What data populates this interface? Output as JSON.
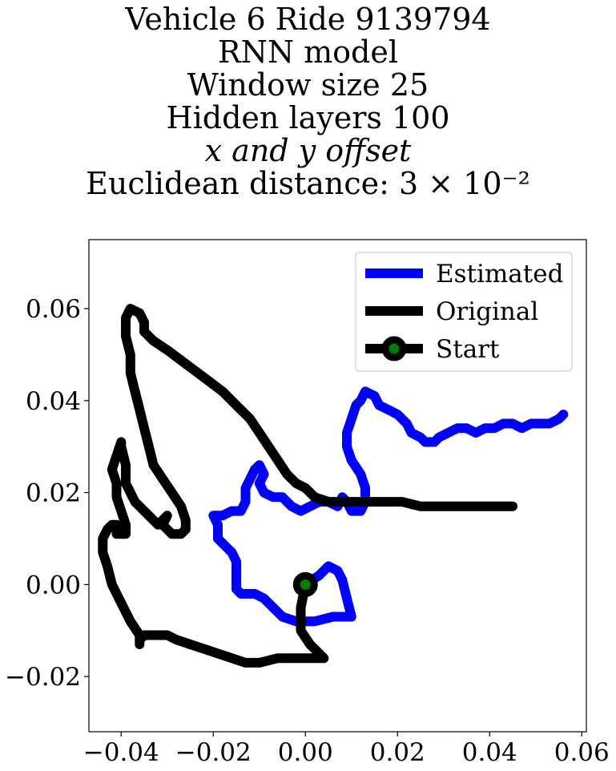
{
  "chart_data": {
    "type": "line",
    "title_lines": [
      "Vehicle 6 Ride 9139794",
      "RNN model",
      "Window size 25",
      "Hidden layers 100",
      "x and y offset",
      "Euclidean distance: 3 × 10⁻²"
    ],
    "xlabel": "",
    "ylabel": "",
    "xlim": [
      -0.047,
      0.061
    ],
    "ylim": [
      -0.032,
      0.075
    ],
    "xticks": [
      -0.04,
      -0.02,
      0.0,
      0.02,
      0.04,
      0.06
    ],
    "xtick_labels": [
      "−0.04",
      "−0.02",
      "0.00",
      "0.02",
      "0.04",
      "0.06"
    ],
    "yticks": [
      -0.02,
      0.0,
      0.02,
      0.04,
      0.06
    ],
    "ytick_labels": [
      "−0.02",
      "0.00",
      "0.02",
      "0.04",
      "0.06"
    ],
    "grid": false,
    "legend_position": "top-right",
    "series": [
      {
        "name": "Estimated",
        "color": "#0000ff",
        "points": [
          [
            0.0,
            0.0
          ],
          [
            0.003,
            0.002
          ],
          [
            0.005,
            0.004
          ],
          [
            0.007,
            0.003
          ],
          [
            0.008,
            0.001
          ],
          [
            0.009,
            -0.003
          ],
          [
            0.01,
            -0.007
          ],
          [
            0.009,
            -0.007
          ],
          [
            0.006,
            -0.007
          ],
          [
            0.002,
            -0.008
          ],
          [
            -0.002,
            -0.008
          ],
          [
            -0.005,
            -0.007
          ],
          [
            -0.009,
            -0.003
          ],
          [
            -0.011,
            -0.002
          ],
          [
            -0.014,
            -0.002
          ],
          [
            -0.015,
            -0.001
          ],
          [
            -0.015,
            0.002
          ],
          [
            -0.015,
            0.005
          ],
          [
            -0.016,
            0.007
          ],
          [
            -0.017,
            0.008
          ],
          [
            -0.019,
            0.01
          ],
          [
            -0.019,
            0.013
          ],
          [
            -0.02,
            0.015
          ],
          [
            -0.018,
            0.015
          ],
          [
            -0.016,
            0.016
          ],
          [
            -0.014,
            0.016
          ],
          [
            -0.013,
            0.018
          ],
          [
            -0.013,
            0.021
          ],
          [
            -0.012,
            0.023
          ],
          [
            -0.011,
            0.025
          ],
          [
            -0.01,
            0.026
          ],
          [
            -0.009,
            0.024
          ],
          [
            -0.01,
            0.022
          ],
          [
            -0.009,
            0.02
          ],
          [
            -0.007,
            0.019
          ],
          [
            -0.005,
            0.019
          ],
          [
            -0.003,
            0.017
          ],
          [
            -0.001,
            0.016
          ],
          [
            0.001,
            0.017
          ],
          [
            0.003,
            0.018
          ],
          [
            0.005,
            0.018
          ],
          [
            0.007,
            0.017
          ],
          [
            0.008,
            0.019
          ],
          [
            0.009,
            0.018
          ],
          [
            0.01,
            0.016
          ],
          [
            0.012,
            0.016
          ],
          [
            0.013,
            0.018
          ],
          [
            0.013,
            0.021
          ],
          [
            0.012,
            0.024
          ],
          [
            0.01,
            0.027
          ],
          [
            0.009,
            0.03
          ],
          [
            0.009,
            0.033
          ],
          [
            0.01,
            0.036
          ],
          [
            0.011,
            0.039
          ],
          [
            0.012,
            0.04
          ],
          [
            0.013,
            0.042
          ],
          [
            0.015,
            0.041
          ],
          [
            0.016,
            0.039
          ],
          [
            0.018,
            0.038
          ],
          [
            0.02,
            0.037
          ],
          [
            0.022,
            0.035
          ],
          [
            0.023,
            0.033
          ],
          [
            0.025,
            0.032
          ],
          [
            0.026,
            0.031
          ],
          [
            0.028,
            0.031
          ],
          [
            0.029,
            0.032
          ],
          [
            0.031,
            0.033
          ],
          [
            0.033,
            0.034
          ],
          [
            0.035,
            0.034
          ],
          [
            0.037,
            0.033
          ],
          [
            0.039,
            0.034
          ],
          [
            0.041,
            0.034
          ],
          [
            0.043,
            0.035
          ],
          [
            0.045,
            0.035
          ],
          [
            0.047,
            0.034
          ],
          [
            0.049,
            0.035
          ],
          [
            0.051,
            0.035
          ],
          [
            0.053,
            0.035
          ],
          [
            0.055,
            0.036
          ],
          [
            0.056,
            0.037
          ]
        ]
      },
      {
        "name": "Original",
        "color": "#000000",
        "points": [
          [
            0.0,
            0.0
          ],
          [
            -0.001,
            -0.005
          ],
          [
            -0.001,
            -0.01
          ],
          [
            0.001,
            -0.013
          ],
          [
            0.003,
            -0.015
          ],
          [
            0.004,
            -0.016
          ],
          [
            0.001,
            -0.016
          ],
          [
            -0.002,
            -0.016
          ],
          [
            -0.006,
            -0.016
          ],
          [
            -0.01,
            -0.017
          ],
          [
            -0.013,
            -0.017
          ],
          [
            -0.016,
            -0.016
          ],
          [
            -0.019,
            -0.015
          ],
          [
            -0.022,
            -0.014
          ],
          [
            -0.025,
            -0.013
          ],
          [
            -0.028,
            -0.012
          ],
          [
            -0.03,
            -0.011
          ],
          [
            -0.032,
            -0.011
          ],
          [
            -0.035,
            -0.011
          ],
          [
            -0.036,
            -0.012
          ],
          [
            -0.036,
            -0.013
          ],
          [
            -0.036,
            -0.011
          ],
          [
            -0.038,
            -0.008
          ],
          [
            -0.04,
            -0.004
          ],
          [
            -0.042,
            0.0
          ],
          [
            -0.043,
            0.004
          ],
          [
            -0.044,
            0.007
          ],
          [
            -0.044,
            0.01
          ],
          [
            -0.043,
            0.012
          ],
          [
            -0.042,
            0.013
          ],
          [
            -0.041,
            0.013
          ],
          [
            -0.041,
            0.011
          ],
          [
            -0.039,
            0.011
          ],
          [
            -0.039,
            0.013
          ],
          [
            -0.04,
            0.016
          ],
          [
            -0.041,
            0.019
          ],
          [
            -0.041,
            0.022
          ],
          [
            -0.042,
            0.025
          ],
          [
            -0.041,
            0.028
          ],
          [
            -0.04,
            0.031
          ],
          [
            -0.04,
            0.03
          ],
          [
            -0.039,
            0.026
          ],
          [
            -0.039,
            0.022
          ],
          [
            -0.037,
            0.018
          ],
          [
            -0.035,
            0.016
          ],
          [
            -0.033,
            0.014
          ],
          [
            -0.032,
            0.013
          ],
          [
            -0.031,
            0.014
          ],
          [
            -0.03,
            0.015
          ],
          [
            -0.031,
            0.013
          ],
          [
            -0.03,
            0.012
          ],
          [
            -0.029,
            0.011
          ],
          [
            -0.027,
            0.011
          ],
          [
            -0.026,
            0.012
          ],
          [
            -0.026,
            0.014
          ],
          [
            -0.027,
            0.017
          ],
          [
            -0.029,
            0.02
          ],
          [
            -0.031,
            0.023
          ],
          [
            -0.033,
            0.026
          ],
          [
            -0.034,
            0.03
          ],
          [
            -0.035,
            0.034
          ],
          [
            -0.036,
            0.038
          ],
          [
            -0.037,
            0.042
          ],
          [
            -0.038,
            0.046
          ],
          [
            -0.038,
            0.05
          ],
          [
            -0.039,
            0.054
          ],
          [
            -0.039,
            0.058
          ],
          [
            -0.038,
            0.06
          ],
          [
            -0.036,
            0.059
          ],
          [
            -0.035,
            0.057
          ],
          [
            -0.035,
            0.055
          ],
          [
            -0.033,
            0.053
          ],
          [
            -0.03,
            0.051
          ],
          [
            -0.026,
            0.048
          ],
          [
            -0.022,
            0.045
          ],
          [
            -0.018,
            0.042
          ],
          [
            -0.015,
            0.039
          ],
          [
            -0.012,
            0.036
          ],
          [
            -0.01,
            0.033
          ],
          [
            -0.008,
            0.03
          ],
          [
            -0.006,
            0.027
          ],
          [
            -0.004,
            0.024
          ],
          [
            -0.002,
            0.022
          ],
          [
            0.0,
            0.021
          ],
          [
            0.002,
            0.019
          ],
          [
            0.005,
            0.018
          ],
          [
            0.009,
            0.018
          ],
          [
            0.013,
            0.018
          ],
          [
            0.017,
            0.018
          ],
          [
            0.021,
            0.018
          ],
          [
            0.025,
            0.017
          ],
          [
            0.029,
            0.017
          ],
          [
            0.033,
            0.017
          ],
          [
            0.037,
            0.017
          ],
          [
            0.041,
            0.017
          ],
          [
            0.045,
            0.017
          ]
        ]
      },
      {
        "name": "Start",
        "color": "#000000",
        "marker_fill": "#008000",
        "points": [
          [
            0.0,
            0.0
          ]
        ]
      }
    ]
  }
}
